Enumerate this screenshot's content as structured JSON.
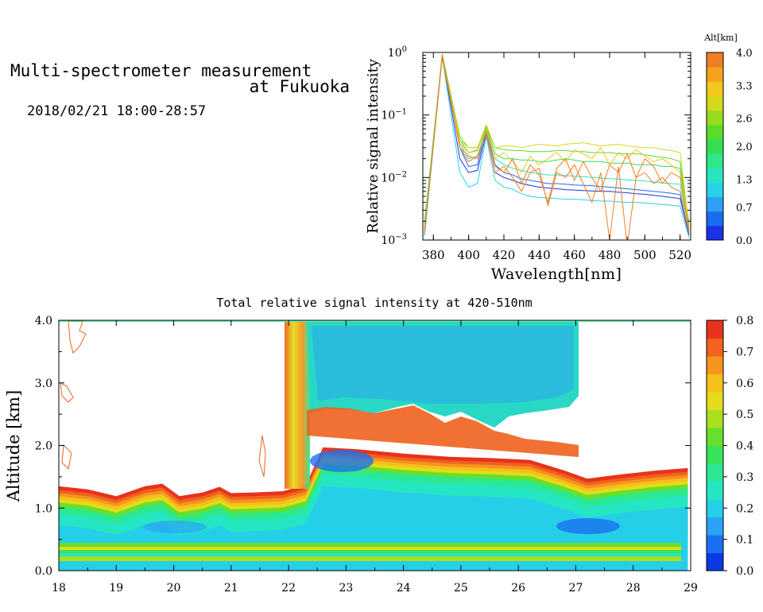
{
  "header": {
    "title_line1": "Multi-spectrometer measurement",
    "title_line2": "at Fukuoka",
    "date_range": "2018/02/21 18:00-28:57"
  },
  "colors": {
    "alt_scale": [
      "#1a33e6",
      "#1a6cf0",
      "#2ea0f5",
      "#29d1e8",
      "#27e6bf",
      "#2fe68a",
      "#33de55",
      "#5cdc2a",
      "#98dc20",
      "#d6d81a",
      "#f2c81a",
      "#f4a31e",
      "#f07e22"
    ],
    "intensity_scale": [
      "#0a3ae6",
      "#1a70f0",
      "#2aa2f5",
      "#25cfe8",
      "#25e6c2",
      "#2be891",
      "#36e45c",
      "#66e02c",
      "#a8df1e",
      "#e4dc1a",
      "#f6c01a",
      "#f6941e",
      "#f0621e",
      "#e8321c"
    ]
  },
  "chart_data": [
    {
      "type": "line",
      "title": "",
      "xlabel": "Wavelength[nm]",
      "ylabel": "Relative signal intensity",
      "xlim": [
        374,
        526
      ],
      "ylim": [
        0.001,
        1
      ],
      "yscale": "log",
      "x_ticks": [
        "380",
        "400",
        "420",
        "440",
        "460",
        "480",
        "500",
        "520"
      ],
      "y_ticks": [
        {
          "base": "10",
          "exp": "0"
        },
        {
          "base": "10",
          "exp": "−1"
        },
        {
          "base": "10",
          "exp": "−2"
        },
        {
          "base": "10",
          "exp": "−3"
        }
      ],
      "x": [
        375,
        385,
        395,
        400,
        405,
        410,
        415,
        420,
        425,
        430,
        435,
        440,
        445,
        450,
        455,
        460,
        465,
        470,
        475,
        480,
        485,
        490,
        495,
        500,
        505,
        510,
        515,
        520,
        525
      ],
      "series": [
        {
          "alt": 0.1,
          "values": [
            0.0012,
            0.9,
            0.02,
            0.012,
            0.013,
            0.05,
            0.012,
            0.01,
            0.009,
            0.008,
            0.0075,
            0.007,
            0.0068,
            0.0066,
            0.0064,
            0.0063,
            0.0062,
            0.0061,
            0.006,
            0.006,
            0.0058,
            0.0057,
            0.0055,
            0.0054,
            0.0052,
            0.005,
            0.0048,
            0.0046,
            0.0012
          ]
        },
        {
          "alt": 0.6,
          "values": [
            0.0015,
            0.9,
            0.03,
            0.015,
            0.016,
            0.06,
            0.016,
            0.012,
            0.011,
            0.0095,
            0.009,
            0.0085,
            0.008,
            0.008,
            0.0078,
            0.0076,
            0.0075,
            0.0074,
            0.0072,
            0.007,
            0.0068,
            0.0066,
            0.0064,
            0.0062,
            0.006,
            0.0058,
            0.0056,
            0.0053,
            0.0014
          ]
        },
        {
          "alt": 1.1,
          "values": [
            0.0012,
            0.85,
            0.012,
            0.007,
            0.008,
            0.045,
            0.009,
            0.007,
            0.0065,
            0.0055,
            0.005,
            0.0048,
            0.0047,
            0.0046,
            0.0045,
            0.0045,
            0.0044,
            0.0043,
            0.0042,
            0.0042,
            0.0041,
            0.004,
            0.004,
            0.0039,
            0.0038,
            0.0037,
            0.0036,
            0.0035,
            0.0011
          ]
        },
        {
          "alt": 1.5,
          "values": [
            0.002,
            0.9,
            0.035,
            0.02,
            0.022,
            0.06,
            0.02,
            0.016,
            0.014,
            0.013,
            0.012,
            0.0115,
            0.011,
            0.011,
            0.0108,
            0.0105,
            0.0103,
            0.01,
            0.0098,
            0.0096,
            0.0094,
            0.0092,
            0.009,
            0.0088,
            0.0085,
            0.0082,
            0.008,
            0.0078,
            0.0015
          ]
        },
        {
          "alt": 2.0,
          "values": [
            0.0018,
            0.9,
            0.04,
            0.025,
            0.027,
            0.065,
            0.024,
            0.02,
            0.02,
            0.019,
            0.019,
            0.018,
            0.018,
            0.019,
            0.02,
            0.019,
            0.018,
            0.018,
            0.018,
            0.017,
            0.017,
            0.017,
            0.016,
            0.016,
            0.016,
            0.015,
            0.015,
            0.014,
            0.002
          ]
        },
        {
          "alt": 2.4,
          "values": [
            0.0016,
            0.95,
            0.045,
            0.03,
            0.03,
            0.065,
            0.03,
            0.028,
            0.027,
            0.027,
            0.026,
            0.026,
            0.026,
            0.027,
            0.027,
            0.026,
            0.026,
            0.025,
            0.025,
            0.025,
            0.024,
            0.024,
            0.024,
            0.023,
            0.022,
            0.021,
            0.02,
            0.018,
            0.0018
          ]
        },
        {
          "alt": 2.9,
          "values": [
            0.0015,
            0.9,
            0.04,
            0.03,
            0.03,
            0.07,
            0.03,
            0.032,
            0.032,
            0.03,
            0.032,
            0.034,
            0.033,
            0.032,
            0.034,
            0.035,
            0.036,
            0.034,
            0.032,
            0.033,
            0.034,
            0.032,
            0.031,
            0.03,
            0.03,
            0.028,
            0.027,
            0.025,
            0.0017
          ]
        },
        {
          "alt": 3.3,
          "values": [
            0.0014,
            0.9,
            0.035,
            0.025,
            0.028,
            0.06,
            0.02,
            0.025,
            0.018,
            0.012,
            0.022,
            0.016,
            0.02,
            0.025,
            0.018,
            0.028,
            0.024,
            0.02,
            0.03,
            0.016,
            0.025,
            0.02,
            0.028,
            0.022,
            0.018,
            0.02,
            0.016,
            0.012,
            0.0016
          ]
        },
        {
          "alt": 3.7,
          "values": [
            0.0014,
            0.9,
            0.03,
            0.022,
            0.02,
            0.055,
            0.015,
            0.012,
            0.02,
            0.008,
            0.016,
            0.011,
            0.004,
            0.014,
            0.02,
            0.009,
            0.018,
            0.01,
            0.006,
            0.016,
            0.012,
            0.024,
            0.01,
            0.02,
            0.015,
            0.008,
            0.012,
            0.01,
            0.0015
          ]
        },
        {
          "alt": 4.0,
          "values": [
            0.0013,
            0.85,
            0.03,
            0.018,
            0.022,
            0.05,
            0.012,
            0.015,
            0.01,
            0.006,
            0.012,
            0.014,
            0.0035,
            0.012,
            0.01,
            0.016,
            0.008,
            0.004,
            0.012,
            0.001,
            0.015,
            0.0008,
            0.01,
            0.012,
            0.008,
            0.01,
            0.007,
            0.006,
            0.0013
          ]
        }
      ],
      "colorbar": {
        "label": "Alt[km]",
        "range": [
          0,
          4
        ],
        "tick_labels": [
          "4.0",
          "3.3",
          "2.6",
          "2.0",
          "1.3",
          "0.7",
          "0.0"
        ]
      }
    },
    {
      "type": "heatmap",
      "title": "Total relative signal intensity at 420-510nm",
      "xlabel": "",
      "ylabel": "Altitude [km]",
      "xlim": [
        18,
        29
      ],
      "ylim": [
        0,
        4
      ],
      "x_ticks": [
        "18",
        "19",
        "20",
        "21",
        "22",
        "23",
        "24",
        "25",
        "26",
        "27",
        "28",
        "29"
      ],
      "y_ticks": [
        "0.0",
        "1.0",
        "2.0",
        "3.0",
        "4.0"
      ],
      "data_end_x": 28.95,
      "mixed_layer_top_km": [
        [
          18.0,
          1.33
        ],
        [
          18.5,
          1.28
        ],
        [
          19.0,
          1.17
        ],
        [
          19.5,
          1.33
        ],
        [
          19.8,
          1.37
        ],
        [
          20.1,
          1.17
        ],
        [
          20.5,
          1.23
        ],
        [
          20.8,
          1.32
        ],
        [
          21.0,
          1.22
        ],
        [
          21.4,
          1.23
        ],
        [
          21.9,
          1.25
        ],
        [
          22.3,
          1.35
        ],
        [
          22.6,
          1.95
        ],
        [
          23.2,
          1.92
        ],
        [
          24.0,
          1.85
        ],
        [
          24.8,
          1.8
        ],
        [
          25.5,
          1.78
        ],
        [
          26.2,
          1.75
        ],
        [
          26.8,
          1.58
        ],
        [
          27.2,
          1.45
        ],
        [
          27.8,
          1.52
        ],
        [
          28.4,
          1.58
        ],
        [
          28.95,
          1.62
        ]
      ],
      "colorbar": {
        "label": "",
        "range": [
          0,
          0.8
        ],
        "tick_labels": [
          "0.8",
          "0.7",
          "0.6",
          "0.5",
          "0.4",
          "0.3",
          "0.2",
          "0.1",
          "0.0"
        ]
      }
    }
  ]
}
